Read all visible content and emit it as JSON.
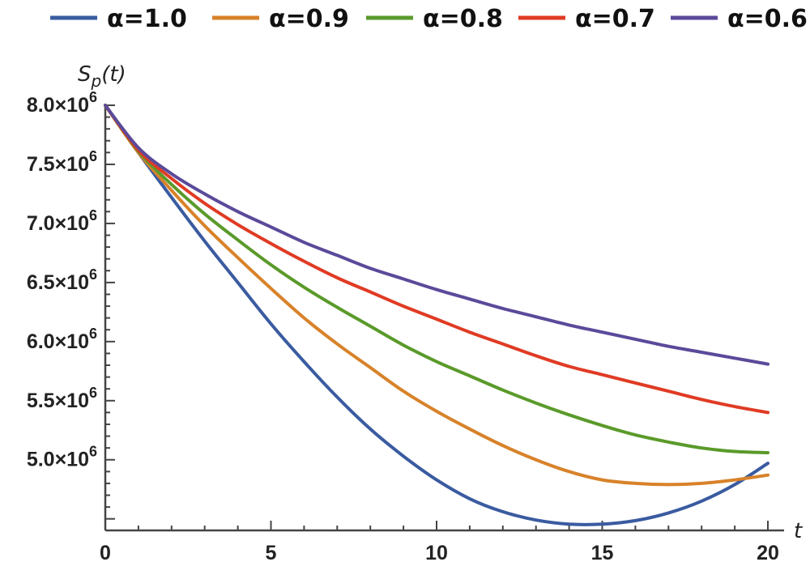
{
  "chart_data": {
    "type": "line",
    "title": "",
    "xlabel": "t",
    "ylabel": "S_p(t)",
    "xlim": [
      0,
      20
    ],
    "ylim": [
      4450000,
      8000000
    ],
    "grid": false,
    "legend_position": "top",
    "x_ticks": [
      0,
      5,
      10,
      15,
      20
    ],
    "x_tick_labels": [
      "0",
      "5",
      "10",
      "15",
      "20"
    ],
    "y_ticks": [
      5000000,
      5500000,
      6000000,
      6500000,
      7000000,
      7500000,
      8000000
    ],
    "y_tick_labels": [
      {
        "mantissa": "5.0",
        "times": "×10",
        "exp": "6"
      },
      {
        "mantissa": "5.5",
        "times": "×10",
        "exp": "6"
      },
      {
        "mantissa": "6.0",
        "times": "×10",
        "exp": "6"
      },
      {
        "mantissa": "6.5",
        "times": "×10",
        "exp": "6"
      },
      {
        "mantissa": "7.0",
        "times": "×10",
        "exp": "6"
      },
      {
        "mantissa": "7.5",
        "times": "×10",
        "exp": "6"
      },
      {
        "mantissa": "8.0",
        "times": "×10",
        "exp": "6"
      }
    ],
    "x": [
      0,
      1,
      2,
      3,
      4,
      5,
      6,
      7,
      8,
      9,
      10,
      11,
      12,
      13,
      14,
      15,
      16,
      17,
      18,
      19,
      20
    ],
    "series": [
      {
        "name": "α=1.0",
        "color": "#3a5ba0",
        "values": [
          8000000,
          7600000,
          7220000,
          6850000,
          6500000,
          6150000,
          5830000,
          5530000,
          5260000,
          5030000,
          4830000,
          4670000,
          4560000,
          4490000,
          4455000,
          4455000,
          4485000,
          4550000,
          4650000,
          4790000,
          4970000
        ]
      },
      {
        "name": "α=0.9",
        "color": "#d8822a",
        "values": [
          8000000,
          7600000,
          7280000,
          6980000,
          6710000,
          6450000,
          6200000,
          5980000,
          5780000,
          5580000,
          5410000,
          5260000,
          5120000,
          5000000,
          4900000,
          4830000,
          4800000,
          4790000,
          4800000,
          4830000,
          4870000
        ]
      },
      {
        "name": "α=0.8",
        "color": "#5a9a2a",
        "values": [
          8000000,
          7610000,
          7330000,
          7080000,
          6860000,
          6650000,
          6460000,
          6290000,
          6130000,
          5970000,
          5830000,
          5710000,
          5590000,
          5480000,
          5380000,
          5290000,
          5210000,
          5150000,
          5100000,
          5070000,
          5060000
        ]
      },
      {
        "name": "α=0.7",
        "color": "#e03b24",
        "values": [
          8000000,
          7620000,
          7380000,
          7170000,
          6990000,
          6830000,
          6680000,
          6540000,
          6420000,
          6300000,
          6190000,
          6080000,
          5980000,
          5880000,
          5790000,
          5720000,
          5650000,
          5580000,
          5510000,
          5450000,
          5400000
        ]
      },
      {
        "name": "α=0.6",
        "color": "#5b4a9a",
        "values": [
          8000000,
          7640000,
          7420000,
          7250000,
          7100000,
          6970000,
          6840000,
          6730000,
          6620000,
          6530000,
          6440000,
          6360000,
          6280000,
          6210000,
          6140000,
          6080000,
          6020000,
          5960000,
          5910000,
          5860000,
          5810000
        ]
      }
    ]
  }
}
